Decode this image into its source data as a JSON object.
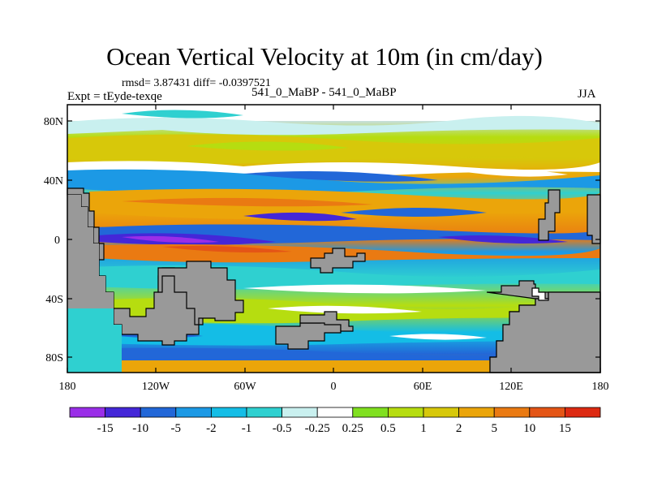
{
  "title": "Ocean Vertical Velocity at 10m (in cm/day)",
  "stats_line": "rmsd= 3.87431  diff= -0.0397521",
  "left_label": "Expt = tEyde-texqe",
  "center_label": "541_0_MaBP - 541_0_MaBP",
  "right_label": "JJA",
  "map": {
    "lat_ticks": [
      "80N",
      "40N",
      "0",
      "40S",
      "80S"
    ],
    "lon_ticks": [
      "180",
      "120W",
      "60W",
      "0",
      "60E",
      "120E",
      "180"
    ],
    "land_color": "#999999",
    "field_description_visible": false
  },
  "colorbar": {
    "labels": [
      "-15",
      "-10",
      "-5",
      "-2",
      "-1",
      "-0.5",
      "-0.25",
      "0.25",
      "0.5",
      "1",
      "2",
      "5",
      "10",
      "15"
    ],
    "colors": [
      "#9a2ee8",
      "#4427d8",
      "#2267d8",
      "#1c99e5",
      "#14bde6",
      "#2fd0d0",
      "#c9f0ef",
      "#ffffff",
      "#80e020",
      "#b6dd10",
      "#d7c80a",
      "#eba50a",
      "#ea7a12",
      "#e45516",
      "#dd2a12"
    ]
  }
}
